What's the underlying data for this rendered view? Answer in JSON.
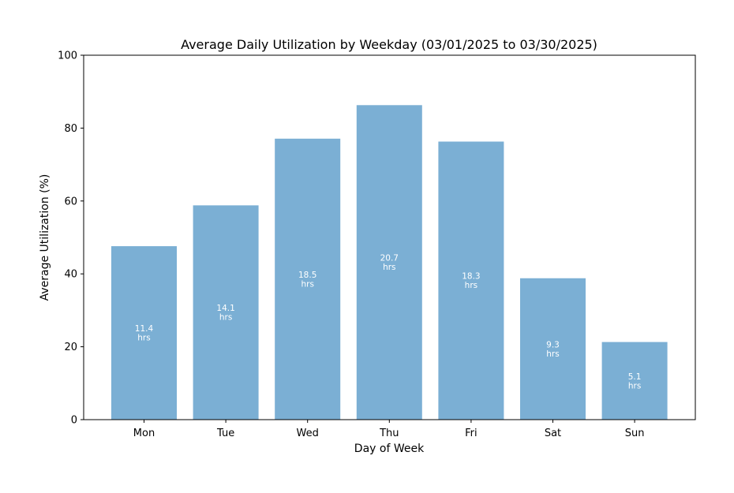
{
  "chart_data": {
    "type": "bar",
    "title": "Average Daily Utilization by Weekday (03/01/2025 to 03/30/2025)",
    "xlabel": "Day of Week",
    "ylabel": "Average Utilization (%)",
    "ylim": [
      0,
      100
    ],
    "yticks": [
      "0",
      "20",
      "40",
      "60",
      "80",
      "100"
    ],
    "categories": [
      "Mon",
      "Tue",
      "Wed",
      "Thu",
      "Fri",
      "Sat",
      "Sun"
    ],
    "values": [
      47.6,
      58.8,
      77.1,
      86.3,
      76.3,
      38.8,
      21.3
    ],
    "bar_labels": [
      [
        "11.4",
        "hrs"
      ],
      [
        "14.1",
        "hrs"
      ],
      [
        "18.5",
        "hrs"
      ],
      [
        "20.7",
        "hrs"
      ],
      [
        "18.3",
        "hrs"
      ],
      [
        "9.3",
        "hrs"
      ],
      [
        "5.1",
        "hrs"
      ]
    ],
    "grid": false,
    "bar_color": "#7bafd4"
  }
}
